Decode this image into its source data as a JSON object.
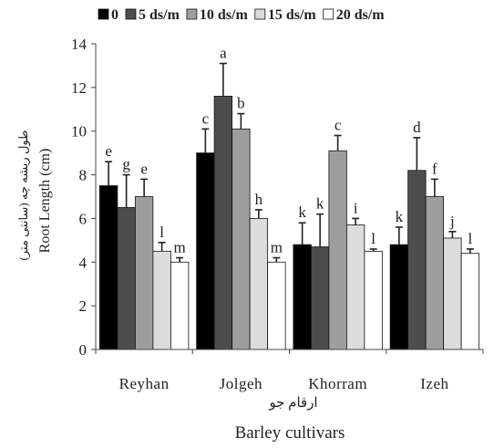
{
  "chart_data": {
    "type": "bar",
    "xlabel": "Barley cultivars",
    "xlabel_fa": "ارقام جو",
    "ylabel": "Root Length (cm)",
    "ylabel_fa": "طول ریشه چه (سانتی متر)",
    "ylim": [
      0,
      14
    ],
    "yticks": [
      "0",
      "2",
      "4",
      "6",
      "8",
      "10",
      "12",
      "14"
    ],
    "grid": false,
    "legend_position": "top",
    "categories": [
      "Reyhan",
      "Jolgeh",
      "Khorram",
      "Izeh"
    ],
    "series": [
      {
        "name": "0",
        "color": "#000000",
        "values": [
          7.5,
          9.0,
          4.8,
          4.8
        ],
        "errors": [
          1.1,
          1.1,
          1.0,
          0.8
        ],
        "letters": [
          "e",
          "c",
          "k",
          "k"
        ]
      },
      {
        "name": "5 ds/m",
        "color": "#4d4d4d",
        "values": [
          6.5,
          11.6,
          4.7,
          8.2
        ],
        "errors": [
          1.5,
          1.5,
          1.5,
          1.5
        ],
        "letters": [
          "g",
          "a",
          "k",
          "d"
        ]
      },
      {
        "name": "10 ds/m",
        "color": "#9e9e9e",
        "values": [
          7.0,
          10.1,
          9.1,
          7.0
        ],
        "errors": [
          0.8,
          0.7,
          0.7,
          0.8
        ],
        "letters": [
          "e",
          "b",
          "c",
          "f"
        ]
      },
      {
        "name": "15 ds/m",
        "color": "#dcdcdc",
        "values": [
          4.5,
          6.0,
          5.7,
          5.1
        ],
        "errors": [
          0.4,
          0.4,
          0.3,
          0.3
        ],
        "letters": [
          "l",
          "h",
          "i",
          "j"
        ]
      },
      {
        "name": "20 ds/m",
        "color": "#ffffff",
        "values": [
          4.0,
          4.0,
          4.5,
          4.4
        ],
        "errors": [
          0.2,
          0.2,
          0.1,
          0.2
        ],
        "letters": [
          "m",
          "m",
          "l",
          "l"
        ]
      }
    ]
  }
}
